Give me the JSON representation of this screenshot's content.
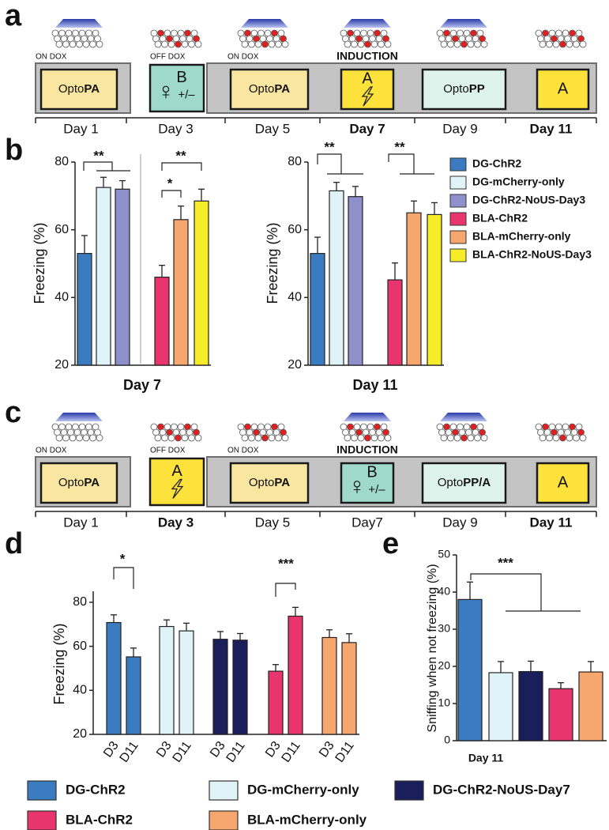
{
  "panels": [
    "a",
    "b",
    "c",
    "d",
    "e"
  ],
  "timelines": [
    {
      "dox": [
        "ON DOX",
        "OFF DOX",
        "ON DOX"
      ],
      "induction": "INDUCTION",
      "steps": [
        {
          "light": true,
          "box": {
            "prefix": "Opto",
            "bold": "PA"
          },
          "color": "#f9e7a1",
          "day": "Day 1",
          "day_bold": false
        },
        {
          "light": false,
          "box": {
            "symbol": "♀",
            "letter": "B",
            "sub": "+/–"
          },
          "color": "#9fd9cc",
          "day": "Day 3",
          "day_bold": false
        },
        {
          "light": true,
          "box": {
            "prefix": "Opto",
            "bold": "PA"
          },
          "color": "#f9e7a1",
          "day": "Day 5",
          "day_bold": false
        },
        {
          "light": true,
          "box": {
            "letter": "A",
            "shock": true
          },
          "color": "#fde23c",
          "day": "Day 7",
          "day_bold": true
        },
        {
          "light": true,
          "box": {
            "prefix": "Opto",
            "bold": "PP"
          },
          "color": "#def3ec",
          "day": "Day 9",
          "day_bold": false
        },
        {
          "light": false,
          "box": {
            "letter": "A"
          },
          "color": "#fde23c",
          "day": "Day 11",
          "day_bold": true
        }
      ]
    },
    {
      "dox": [
        "ON DOX",
        "OFF DOX",
        "ON DOX"
      ],
      "induction": "INDUCTION",
      "steps": [
        {
          "light": true,
          "box": {
            "prefix": "Opto",
            "bold": "PA"
          },
          "color": "#f9e7a1",
          "day": "Day 1",
          "day_bold": false
        },
        {
          "light": false,
          "box": {
            "letter": "A",
            "shock": true
          },
          "color": "#fde23c",
          "day": "Day 3",
          "day_bold": true
        },
        {
          "light": false,
          "box": {
            "prefix": "Opto",
            "bold": "PA"
          },
          "color": "#f9e7a1",
          "day": "Day 5",
          "day_bold": false
        },
        {
          "light": true,
          "box": {
            "symbol": "♀",
            "letter": "B",
            "sub": "+/–"
          },
          "color": "#9fd9cc",
          "day": "Day7",
          "day_bold": false
        },
        {
          "light": true,
          "box": {
            "prefix": "Opto",
            "bold": "PP/A"
          },
          "color": "#def3ec",
          "day": "Day 9",
          "day_bold": false
        },
        {
          "light": false,
          "box": {
            "letter": "A"
          },
          "color": "#fde23c",
          "day": "Day 11",
          "day_bold": true
        }
      ]
    }
  ],
  "chart_data": [
    {
      "type": "bar",
      "ylabel": "Freezing (%)",
      "categories": [
        "Day 7",
        "Day 11"
      ],
      "ylim": [
        20,
        80
      ],
      "yticks": [
        20,
        40,
        60,
        80
      ],
      "annotations": [
        "**",
        "**",
        "*",
        "**",
        "**"
      ],
      "series": [
        {
          "name": "DG-ChR2",
          "color": "#3b7cc0",
          "values": [
            53,
            53
          ],
          "errors": [
            5.3,
            4.8
          ]
        },
        {
          "name": "DG-mCherry-only",
          "color": "#dff3f9",
          "values": [
            72.5,
            71.5
          ],
          "errors": [
            3,
            2.5
          ]
        },
        {
          "name": "DG-ChR2-NoUS-Day3",
          "color": "#8f8fcc",
          "values": [
            72,
            69.8
          ],
          "errors": [
            2.5,
            3
          ]
        },
        {
          "name": "BLA-ChR2",
          "color": "#e8346f",
          "values": [
            46,
            45.2
          ],
          "errors": [
            3.5,
            5
          ]
        },
        {
          "name": "BLA-mCherry-only",
          "color": "#f6a66f",
          "values": [
            63,
            65
          ],
          "errors": [
            4,
            3.5
          ]
        },
        {
          "name": "BLA-ChR2-NoUS-Day3",
          "color": "#f6ec29",
          "values": [
            68.5,
            64.5
          ],
          "errors": [
            3.5,
            3.5
          ]
        }
      ]
    },
    {
      "type": "bar",
      "ylabel": "Freezing (%)",
      "categories": [
        "D3",
        "D11"
      ],
      "ylim": [
        20,
        85
      ],
      "yticks": [
        20,
        40,
        60,
        80
      ],
      "annotations": [
        "*",
        "***"
      ],
      "series": [
        {
          "name": "DG-ChR2",
          "color": "#3b7cc0",
          "values": [
            70.8,
            55.2
          ],
          "errors": [
            3.5,
            4
          ]
        },
        {
          "name": "DG-mCherry-only",
          "color": "#dff3f9",
          "values": [
            69,
            67
          ],
          "errors": [
            3,
            3.5
          ]
        },
        {
          "name": "DG-ChR2-NoUS-Day7",
          "color": "#1a1f5c",
          "values": [
            63.2,
            62.8
          ],
          "errors": [
            3.5,
            3
          ]
        },
        {
          "name": "BLA-ChR2",
          "color": "#e8346f",
          "values": [
            48.7,
            73.7
          ],
          "errors": [
            3,
            4
          ]
        },
        {
          "name": "BLA-mCherry-only",
          "color": "#f6a66f",
          "values": [
            64,
            61.7
          ],
          "errors": [
            3.5,
            4
          ]
        }
      ]
    },
    {
      "type": "bar",
      "ylabel": "Sniffing when not freezing (%)",
      "categories": [
        "Day 11"
      ],
      "ylim": [
        0,
        50
      ],
      "yticks": [
        0,
        10,
        20,
        30,
        40,
        50
      ],
      "annotations": [
        "***"
      ],
      "series": [
        {
          "color": "#3b7cc0",
          "values": [
            38
          ],
          "errors": [
            4.7
          ]
        },
        {
          "color": "#dff3f9",
          "values": [
            18.3
          ],
          "errors": [
            3
          ]
        },
        {
          "color": "#1a1f5c",
          "values": [
            18.6
          ],
          "errors": [
            2.8
          ]
        },
        {
          "color": "#e8346f",
          "values": [
            14
          ],
          "errors": [
            1.6
          ]
        },
        {
          "color": "#f6a66f",
          "values": [
            18.5
          ],
          "errors": [
            2.8
          ]
        }
      ]
    }
  ]
}
